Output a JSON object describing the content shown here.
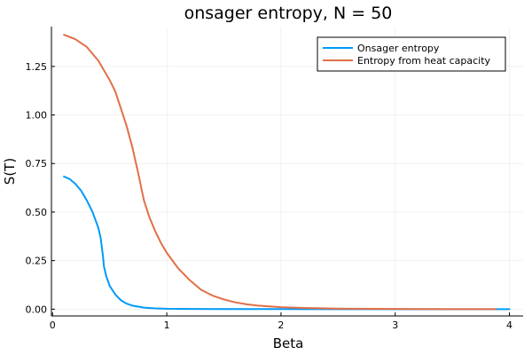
{
  "chart_data": {
    "type": "line",
    "title": "onsager entropy, N = 50",
    "xlabel": "Beta",
    "ylabel": "S(T)",
    "xlim": [
      -0.01,
      4.12
    ],
    "ylim": [
      -0.035,
      1.455
    ],
    "xticks": [
      0,
      1,
      2,
      3,
      4
    ],
    "xtick_labels": [
      "0",
      "1",
      "2",
      "3",
      "4"
    ],
    "yticks": [
      0,
      0.25,
      0.5,
      0.75,
      1.0,
      1.25
    ],
    "ytick_labels": [
      "0.00",
      "0.25",
      "0.50",
      "0.75",
      "1.00",
      "1.25"
    ],
    "grid": true,
    "legend_position": "top-right",
    "series": [
      {
        "name": "Onsager entropy",
        "color": "#009af9",
        "x": [
          0.1,
          0.15,
          0.2,
          0.25,
          0.3,
          0.35,
          0.4,
          0.42,
          0.44,
          0.45,
          0.47,
          0.5,
          0.55,
          0.6,
          0.65,
          0.7,
          0.8,
          0.9,
          1.0,
          1.2,
          1.5,
          2.0,
          2.5,
          3.0,
          3.5,
          4.0
        ],
        "y": [
          0.683,
          0.67,
          0.645,
          0.61,
          0.56,
          0.5,
          0.42,
          0.37,
          0.28,
          0.22,
          0.17,
          0.12,
          0.075,
          0.045,
          0.028,
          0.018,
          0.008,
          0.004,
          0.002,
          0.001,
          0.0005,
          0.0002,
          0.0001,
          0.0,
          0.0,
          0.0
        ]
      },
      {
        "name": "Entropy from heat capacity",
        "color": "#e26f46",
        "x": [
          0.1,
          0.2,
          0.3,
          0.4,
          0.45,
          0.5,
          0.55,
          0.6,
          0.65,
          0.7,
          0.75,
          0.8,
          0.85,
          0.9,
          0.95,
          1.0,
          1.05,
          1.1,
          1.15,
          1.2,
          1.3,
          1.4,
          1.5,
          1.6,
          1.7,
          1.8,
          2.0,
          2.2,
          2.5,
          3.0,
          3.5,
          3.88
        ],
        "y": [
          1.413,
          1.39,
          1.35,
          1.28,
          1.23,
          1.18,
          1.12,
          1.03,
          0.94,
          0.83,
          0.7,
          0.56,
          0.47,
          0.4,
          0.34,
          0.29,
          0.25,
          0.21,
          0.18,
          0.15,
          0.1,
          0.07,
          0.05,
          0.035,
          0.025,
          0.018,
          0.01,
          0.006,
          0.003,
          0.001,
          0.0,
          0.0
        ]
      }
    ]
  }
}
